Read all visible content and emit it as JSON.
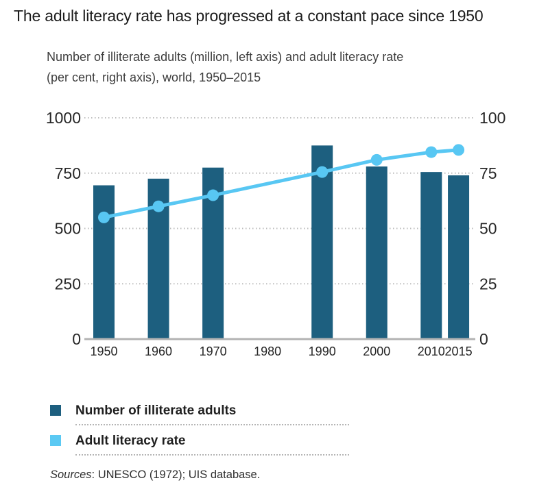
{
  "page": {
    "title": "The adult literacy rate has progressed at a constant pace since 1950",
    "subtitle_line1": "Number of illiterate adults (million, left axis) and adult literacy rate",
    "subtitle_line2": "(per cent, right axis), world, 1950–2015",
    "sources_label": "Sources",
    "sources_rest": ": UNESCO (1972); UIS database."
  },
  "legend": {
    "items": [
      {
        "label": "Number of illiterate adults",
        "color": "#1d5f7f"
      },
      {
        "label": "Adult literacy rate",
        "color": "#5bc9f3"
      }
    ]
  },
  "colors": {
    "bar": "#1d5f7f",
    "line": "#58c7f3",
    "grid": "#bdbdbd",
    "baseline": "#b3b3b3",
    "tick_text": "#262626"
  },
  "chart_data": {
    "type": "bar",
    "subtype": "bars-with-line-dual-axis",
    "title": "Number of illiterate adults (million, left axis) and adult literacy rate (per cent, right axis), world, 1950-2015",
    "categories": [
      "1950",
      "1960",
      "1970",
      "1980",
      "1990",
      "2000",
      "2010",
      "2015"
    ],
    "series": [
      {
        "name": "Number of illiterate adults",
        "type": "bar",
        "axis": "left",
        "unit": "million",
        "values": [
          695,
          725,
          775,
          null,
          875,
          780,
          755,
          740
        ]
      },
      {
        "name": "Adult literacy rate",
        "type": "line",
        "axis": "right",
        "unit": "per cent",
        "values": [
          55,
          60,
          65,
          null,
          75.5,
          81,
          84.5,
          85.5
        ]
      }
    ],
    "left_axis": {
      "range": [
        0,
        1000
      ],
      "ticks": [
        0,
        250,
        500,
        750,
        1000
      ]
    },
    "right_axis": {
      "range": [
        0,
        100
      ],
      "ticks": [
        0,
        25,
        50,
        75,
        100
      ]
    },
    "grid": "dotted-horizontal",
    "legend_position": "below"
  }
}
